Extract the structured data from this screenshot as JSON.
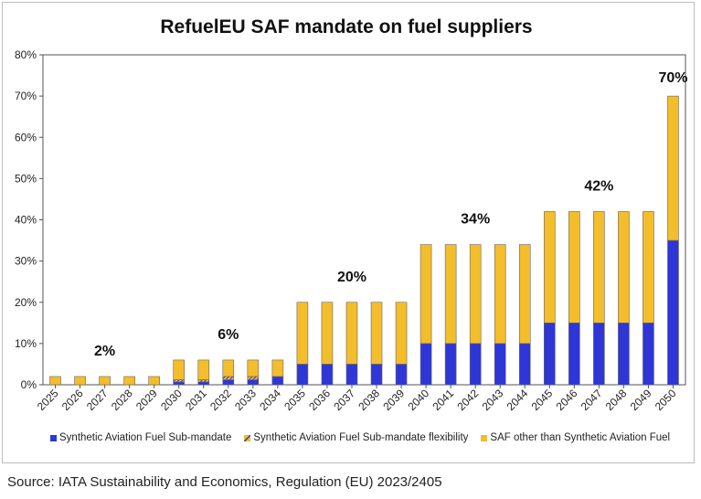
{
  "title": "RefuelEU SAF mandate on fuel suppliers",
  "source": "Source: IATA Sustainability and Economics, Regulation (EU) 2023/2405",
  "colors": {
    "synthetic": "#2e36d8",
    "saf_other": "#f3bd2b",
    "flex": "#f3bd2b"
  },
  "chart_data": {
    "type": "bar",
    "stacked": true,
    "title": "RefuelEU SAF mandate on fuel suppliers",
    "xlabel": "",
    "ylabel": "",
    "ylim": [
      0,
      80
    ],
    "yticks": [
      "0%",
      "10%",
      "20%",
      "30%",
      "40%",
      "50%",
      "60%",
      "70%",
      "80%"
    ],
    "categories": [
      "2025",
      "2026",
      "2027",
      "2028",
      "2029",
      "2030",
      "2031",
      "2032",
      "2033",
      "2034",
      "2035",
      "2036",
      "2037",
      "2038",
      "2039",
      "2040",
      "2041",
      "2042",
      "2043",
      "2044",
      "2045",
      "2046",
      "2047",
      "2048",
      "2049",
      "2050"
    ],
    "series": [
      {
        "name": "Synthetic Aviation Fuel Sub-mandate",
        "color": "#2e36d8",
        "values": [
          0,
          0,
          0,
          0,
          0,
          0.7,
          0.7,
          1.2,
          1.2,
          2,
          5,
          5,
          5,
          5,
          5,
          10,
          10,
          10,
          10,
          10,
          15,
          15,
          15,
          15,
          15,
          35
        ]
      },
      {
        "name": "Synthetic Aviation Fuel Sub-mandate flexibility",
        "color": "#f3bd2b",
        "values": [
          0,
          0,
          0,
          0,
          0,
          0.5,
          0.5,
          0.8,
          0.8,
          0,
          0,
          0,
          0,
          0,
          0,
          0,
          0,
          0,
          0,
          0,
          0,
          0,
          0,
          0,
          0,
          0
        ]
      },
      {
        "name": "SAF other than Synthetic Aviation Fuel",
        "color": "#f3bd2b",
        "values": [
          2,
          2,
          2,
          2,
          2,
          4.8,
          4.8,
          4,
          4,
          4,
          15,
          15,
          15,
          15,
          15,
          24,
          24,
          24,
          24,
          24,
          27,
          27,
          27,
          27,
          27,
          35
        ]
      }
    ],
    "annotations": [
      {
        "text": "2%",
        "category": "2027",
        "value": 2
      },
      {
        "text": "6%",
        "category": "2032",
        "value": 6
      },
      {
        "text": "20%",
        "category": "2037",
        "value": 20
      },
      {
        "text": "34%",
        "category": "2042",
        "value": 34
      },
      {
        "text": "42%",
        "category": "2047",
        "value": 42
      },
      {
        "text": "70%",
        "category": "2050",
        "value": 70
      }
    ],
    "legend_position": "bottom"
  }
}
